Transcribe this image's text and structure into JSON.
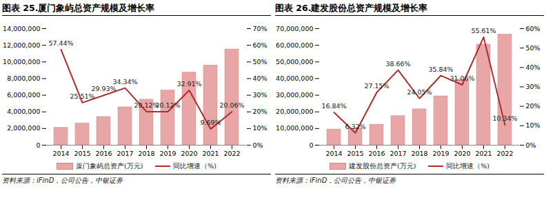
{
  "chart_data": [
    {
      "type": "bar",
      "title": "图表 25.厦门象屿总资产规模及增长率",
      "source": "资料来源：iFinD，公司公告，中银证券",
      "categories": [
        "2014",
        "2015",
        "2016",
        "2017",
        "2018",
        "2019",
        "2020",
        "2021",
        "2022"
      ],
      "series": [
        {
          "name": "厦门象屿总资产(万元)",
          "type": "bar",
          "color": "#e8a6a6",
          "values": [
            2100000,
            2620000,
            3400000,
            4560000,
            5480000,
            6580000,
            8740000,
            9590000,
            11510000
          ]
        },
        {
          "name": "同比增速（%)",
          "type": "line",
          "axis": "y2",
          "color": "#b22a2a",
          "data_labels": true,
          "values": [
            57.44,
            25.51,
            29.93,
            34.34,
            20.12,
            20.12,
            32.91,
            9.69,
            20.06
          ],
          "value_labels": [
            "57.44%",
            "25.51%",
            "29.93%",
            "34.34%",
            "20.12%",
            "20.12%",
            "32.91%",
            "9.69%",
            "20.06%"
          ]
        }
      ],
      "ylim": [
        0,
        14000000
      ],
      "yticks": [
        0,
        {
          "value": 2000000,
          "label": "2,000,000"
        },
        {
          "value": 4000000,
          "label": "4,000,000"
        },
        {
          "value": 6000000,
          "label": "6,000,000"
        },
        {
          "value": 8000000,
          "label": "8,000,000"
        },
        {
          "value": 10000000,
          "label": "10,000,000"
        },
        {
          "value": 12000000,
          "label": "12,000,000"
        },
        {
          "value": 14000000,
          "label": "14,000,000"
        }
      ],
      "y2lim": [
        0,
        70
      ],
      "y2ticks": [
        {
          "value": 0,
          "label": "0%"
        },
        {
          "value": 10,
          "label": "10%"
        },
        {
          "value": 20,
          "label": "20%"
        },
        {
          "value": 30,
          "label": "30%"
        },
        {
          "value": 40,
          "label": "40%"
        },
        {
          "value": 50,
          "label": "50%"
        },
        {
          "value": 60,
          "label": "60%"
        },
        {
          "value": 70,
          "label": "70%"
        }
      ],
      "grid": false,
      "legend": "bottom"
    },
    {
      "type": "bar",
      "title": "图表 26.建发股份总资产规模及增长率",
      "source": "资料来源：iFinD，公司公告，中银证券",
      "categories": [
        "2014",
        "2015",
        "2016",
        "2017",
        "2018",
        "2019",
        "2020",
        "2021",
        "2022"
      ],
      "series": [
        {
          "name": "建发股份总资产(万元)",
          "type": "bar",
          "color": "#e8a6a6",
          "values": [
            9500000,
            10100000,
            12400000,
            17500000,
            21600000,
            29400000,
            39500000,
            60500000,
            66500000
          ]
        },
        {
          "name": "同比增速（%)",
          "type": "line",
          "axis": "y2",
          "color": "#b22a2a",
          "data_labels": true,
          "values": [
            16.84,
            6.32,
            27.15,
            38.66,
            24.05,
            35.84,
            31.06,
            55.61,
            10.34
          ],
          "value_labels": [
            "16.84%",
            "6.32%",
            "27.15%",
            "38.66%",
            "24.05%",
            "35.84%",
            "31.06%",
            "55.61%",
            "10.34%"
          ]
        }
      ],
      "ylim": [
        0,
        70000000
      ],
      "yticks": [
        0,
        {
          "value": 10000000,
          "label": "10,000,000"
        },
        {
          "value": 20000000,
          "label": "20,000,000"
        },
        {
          "value": 30000000,
          "label": "30,000,000"
        },
        {
          "value": 40000000,
          "label": "40,000,000"
        },
        {
          "value": 50000000,
          "label": "50,000,000"
        },
        {
          "value": 60000000,
          "label": "60,000,000"
        },
        {
          "value": 70000000,
          "label": "70,000,000"
        }
      ],
      "y2lim": [
        0,
        60
      ],
      "y2ticks": [
        {
          "value": 0,
          "label": "0%"
        },
        {
          "value": 10,
          "label": "10%"
        },
        {
          "value": 20,
          "label": "20%"
        },
        {
          "value": 30,
          "label": "30%"
        },
        {
          "value": 40,
          "label": "40%"
        },
        {
          "value": 50,
          "label": "50%"
        },
        {
          "value": 60,
          "label": "60%"
        }
      ],
      "grid": false,
      "legend": "bottom"
    }
  ]
}
